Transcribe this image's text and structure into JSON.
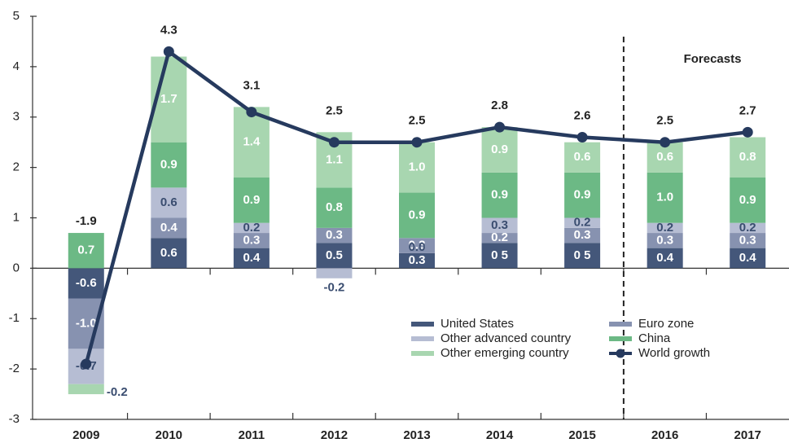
{
  "chart_data": {
    "type": "bar",
    "annotations": [
      "Forecasts"
    ],
    "categories": [
      "2009",
      "2010",
      "2011",
      "2012",
      "2013",
      "2014",
      "2015",
      "2016",
      "2017"
    ],
    "ylim": [
      -3,
      5
    ],
    "yticks": [
      -3,
      -2,
      -1,
      0,
      1,
      2,
      3,
      4,
      5
    ],
    "series": [
      {
        "name": "United States",
        "color": "#44577a",
        "values": [
          -0.6,
          0.6,
          0.4,
          0.5,
          0.3,
          0.5,
          0.5,
          0.4,
          0.4
        ],
        "value_labels": [
          "-0.6",
          "0.6",
          "0.4",
          "0.5",
          "0.3",
          "0 5",
          "0 5",
          "0.4",
          "0.4"
        ]
      },
      {
        "name": "Euro zone",
        "color": "#8792b0",
        "values": [
          -1.0,
          0.4,
          0.3,
          0.3,
          0.3,
          0.2,
          0.3,
          0.3,
          0.3
        ],
        "value_labels": [
          "-1.0",
          "0.4",
          "0.3",
          "0.3",
          "0.3",
          "0.2",
          "0.3",
          "0.3",
          "0.3"
        ]
      },
      {
        "name": "Other advanced country",
        "color": "#b6bdd3",
        "values": [
          -0.7,
          0.6,
          0.2,
          -0.2,
          0.0,
          0.3,
          0.2,
          0.2,
          0.2
        ],
        "value_labels": [
          "-0.7",
          "0.6",
          "0.2",
          "-0.2",
          "0.0",
          "0.3",
          "0.2",
          "0.2",
          "0.2"
        ]
      },
      {
        "name": "China",
        "color": "#6cb985",
        "values": [
          0.7,
          0.9,
          0.9,
          0.8,
          0.9,
          0.9,
          0.9,
          1.0,
          0.9
        ],
        "value_labels": [
          "0.7",
          "0.9",
          "0.9",
          "0.8",
          "0.9",
          "0.9",
          "0.9",
          "1.0",
          "0.9"
        ]
      },
      {
        "name": "Other emerging country",
        "color": "#a8d6b0",
        "values": [
          -0.2,
          1.7,
          1.4,
          1.1,
          1.0,
          0.9,
          0.6,
          0.6,
          0.8
        ],
        "value_labels": [
          "-0.2",
          "1.7",
          "1.4",
          "1.1",
          "1.0",
          "0.9",
          "0.6",
          "0.6",
          "0.8"
        ]
      },
      {
        "name": "World growth",
        "type": "line",
        "color": "#263a5e",
        "values": [
          -1.9,
          4.3,
          3.1,
          2.5,
          2.5,
          2.8,
          2.6,
          2.5,
          2.7
        ]
      }
    ]
  }
}
